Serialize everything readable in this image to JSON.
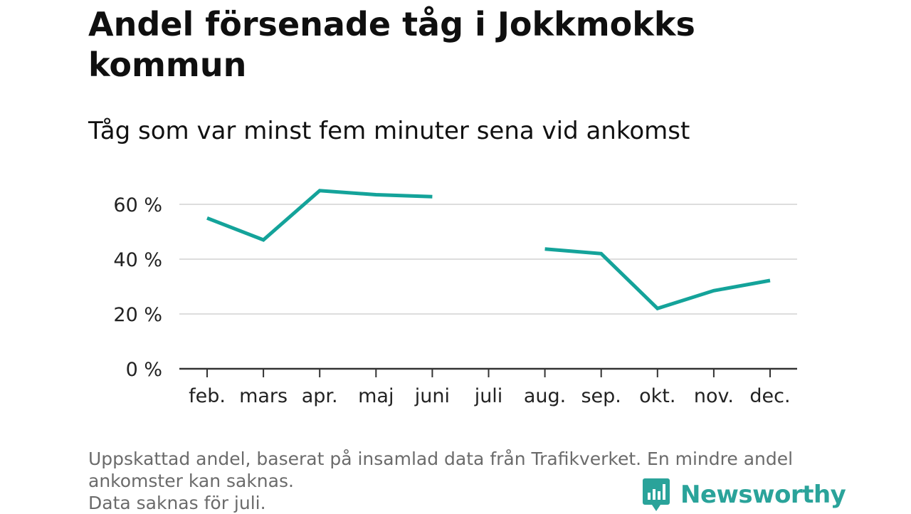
{
  "title": "Andel försenade tåg i Jokkmokks kommun",
  "subtitle": "Tåg som var minst fem minuter sena vid ankomst",
  "footer": {
    "line1": "Uppskattad andel, baserat på insamlad data från Trafikverket. En mindre andel",
    "line2": "ankomster kan saknas.",
    "line3": "Data saknas för juli."
  },
  "brand": {
    "name": "Newsworthy",
    "icon": "newsworthy-logo-icon"
  },
  "colors": {
    "line": "#14a39a",
    "grid": "#dddddd",
    "axis": "#333333",
    "brand": "#2aa39a"
  },
  "chart_data": {
    "type": "line",
    "title": "Andel försenade tåg i Jokkmokks kommun",
    "subtitle": "Tåg som var minst fem minuter sena vid ankomst",
    "xlabel": "",
    "ylabel": "",
    "categories": [
      "feb.",
      "mars",
      "apr.",
      "maj",
      "juni",
      "juli",
      "aug.",
      "sep.",
      "okt.",
      "nov.",
      "dec."
    ],
    "series": [
      {
        "values": [
          55,
          47,
          65,
          63.5,
          62.8,
          null,
          43.7,
          42,
          22,
          28.5,
          32.2
        ]
      }
    ],
    "yticks": [
      0,
      20,
      40,
      60
    ],
    "ytick_labels": [
      "0 %",
      "20 %",
      "40 %",
      "60 %"
    ],
    "ylim": [
      0,
      67
    ],
    "grid": true
  }
}
